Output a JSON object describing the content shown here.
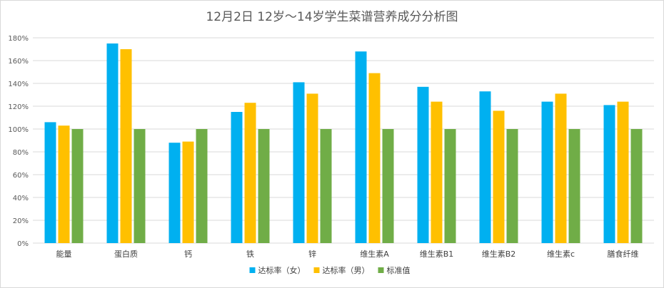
{
  "chart_data": {
    "type": "bar",
    "title": "12月2日 12岁～14岁学生菜谱营养成分分析图",
    "xlabel": "",
    "ylabel": "",
    "ylim": [
      0,
      180
    ],
    "y_unit": "%",
    "y_ticks": [
      "0%",
      "20%",
      "40%",
      "60%",
      "80%",
      "100%",
      "120%",
      "140%",
      "160%",
      "180%"
    ],
    "grid": true,
    "legend_position": "bottom",
    "categories": [
      "能量",
      "蛋白质",
      "钙",
      "铁",
      "锌",
      "维生素A",
      "维生素B1",
      "维生素B2",
      "维生素c",
      "膳食纤维"
    ],
    "series": [
      {
        "name": "达标率（女）",
        "color": "#00b0f0",
        "values": [
          106,
          175,
          88,
          115,
          141,
          168,
          137,
          133,
          124,
          121
        ]
      },
      {
        "name": "达标率（男）",
        "color": "#ffc000",
        "values": [
          103,
          170,
          89,
          123,
          131,
          149,
          124,
          116,
          131,
          124
        ]
      },
      {
        "name": "标准值",
        "color": "#70ad47",
        "values": [
          100,
          100,
          100,
          100,
          100,
          100,
          100,
          100,
          100,
          100
        ]
      }
    ]
  }
}
